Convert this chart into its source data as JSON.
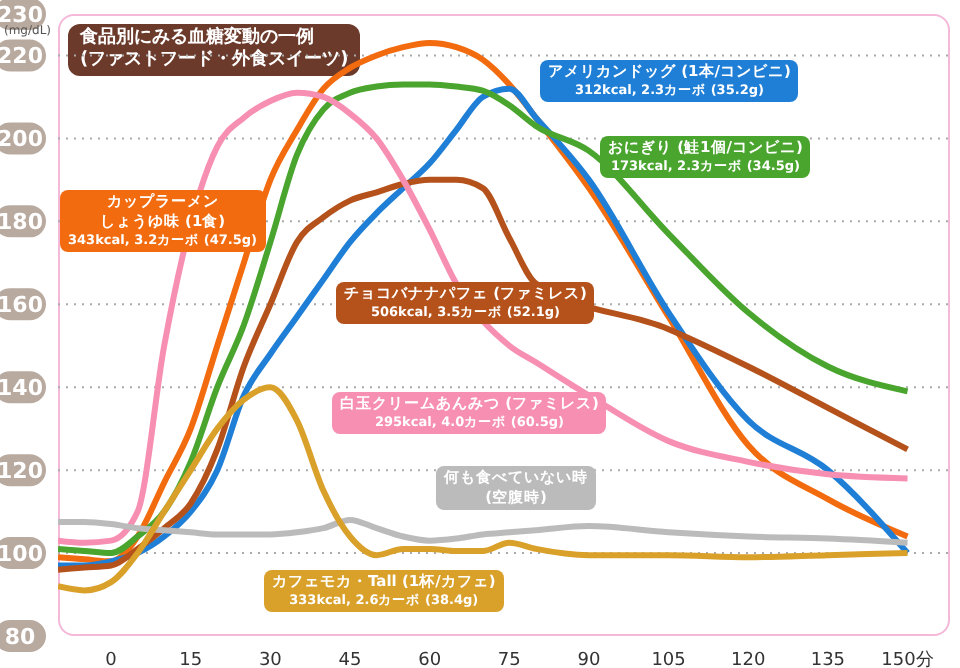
{
  "chart_data": {
    "type": "line",
    "title": "食品別にみる血糖変動の一例\n(ファストフード・外食スイーツ)",
    "ylabel": "(mg/dL)",
    "x": [
      -10,
      -5,
      0,
      5,
      10,
      15,
      20,
      25,
      30,
      35,
      40,
      45,
      50,
      55,
      60,
      65,
      70,
      75,
      80,
      90,
      105,
      120,
      135,
      150
    ],
    "xlim": [
      -10,
      158
    ],
    "xticks": [
      0,
      15,
      30,
      45,
      60,
      75,
      90,
      105,
      120,
      135,
      {
        "value": 150,
        "label": "150分"
      }
    ],
    "ylim": [
      80,
      230
    ],
    "yticks": [
      80,
      100,
      120,
      140,
      160,
      180,
      200,
      220,
      230
    ],
    "grid": "y",
    "legend": false,
    "marker": "none",
    "line_style": "solid",
    "series": [
      {
        "name": "カップラーメンしょうゆ味 (1食)\n343kcal, 3.2カーボ (47.5g)",
        "color": "#f26b0f",
        "values": [
          99,
          98.5,
          98,
          104,
          117,
          130,
          150,
          170,
          190,
          202,
          212,
          217,
          220,
          222,
          223,
          222,
          219,
          213,
          205,
          188,
          157,
          126,
          113,
          104
        ]
      },
      {
        "name": "アメリカンドッグ (1本/コンビニ)\n312kcal, 2.3カーボ (35.2g)",
        "color": "#1f7fd6",
        "values": [
          97,
          97,
          98,
          100,
          104,
          110,
          120,
          138,
          148,
          157,
          166,
          175,
          182,
          188,
          194,
          202,
          210,
          212,
          205,
          190,
          158,
          132,
          120,
          100
        ]
      },
      {
        "name": "おにぎり (鮭1個/コンビニ)\n173kcal, 2.3カーボ (34.5g)",
        "color": "#4aa52e",
        "values": [
          101,
          100.5,
          100,
          104,
          110,
          122,
          140,
          155,
          175,
          196,
          207,
          211,
          212.5,
          213,
          213,
          212.5,
          211.5,
          208,
          203,
          197,
          177,
          158,
          145,
          139
        ]
      },
      {
        "name": "チョコバナナパフェ (ファミレス)\n506kcal, 3.5カーボ (52.1g)",
        "color": "#b5521b",
        "values": [
          96,
          96.5,
          97,
          101,
          106,
          112,
          125,
          145,
          160,
          175,
          181,
          185,
          187,
          189,
          190,
          190,
          188,
          176,
          165,
          null,
          154,
          145,
          135,
          125
        ]
      },
      {
        "name": "白玉クリームあんみつ (ファミレス)\n295kcal, 4.0カーボ (60.5g)",
        "color": "#f78fb3",
        "values": [
          103,
          102.5,
          103,
          110,
          150,
          null,
          198,
          205,
          209,
          211,
          210,
          206,
          200,
          190,
          178,
          165,
          null,
          150,
          146,
          138,
          127,
          122,
          119,
          118
        ]
      },
      {
        "name": "何も食べていない時\n(空腹時)",
        "color": "#bbbbbb",
        "values": [
          107.5,
          107.5,
          107,
          106,
          105.5,
          105,
          104.5,
          104.5,
          104.5,
          105,
          106,
          108,
          106,
          104,
          103,
          103.5,
          104.5,
          105,
          105.5,
          106.5,
          105,
          104,
          103.5,
          102.5
        ]
      },
      {
        "name": "カフェモカ・Tall (1杯/カフェ)\n333kcal, 2.6カーボ (38.4g)",
        "color": "#d9a02a",
        "values": [
          92,
          91,
          93,
          100,
          110,
          120,
          130,
          137,
          140,
          132,
          115,
          104,
          99.5,
          101,
          101,
          100.5,
          100.5,
          102.5,
          101,
          99.5,
          99.5,
          99,
          99.5,
          100
        ]
      }
    ]
  }
}
